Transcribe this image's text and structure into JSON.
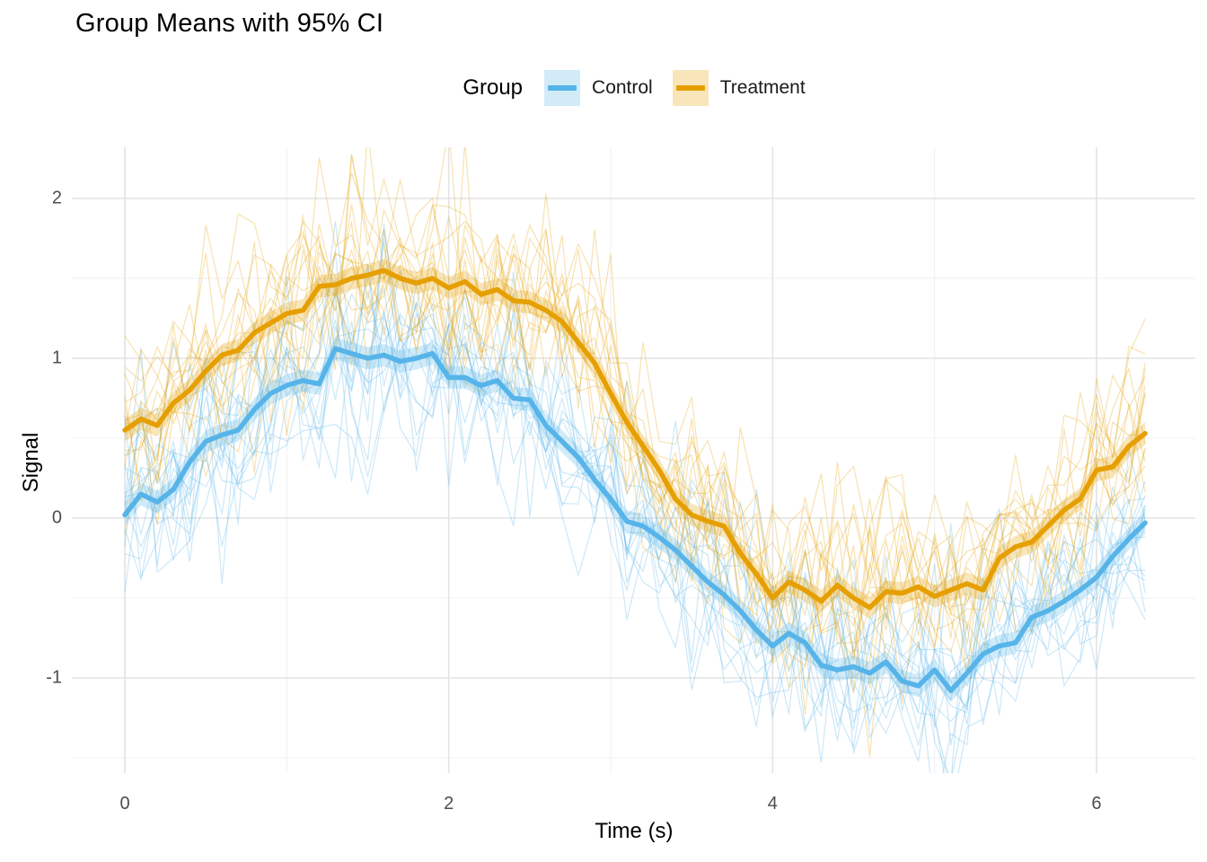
{
  "chart_data": {
    "type": "line",
    "title": "Group Means with 95% CI",
    "xlabel": "Time (s)",
    "ylabel": "Signal",
    "legend_title": "Group",
    "legend_position": "top-center",
    "grid": "on",
    "x_ticks": [
      0,
      2,
      4,
      6
    ],
    "y_ticks": [
      -1,
      0,
      1,
      2
    ],
    "x_minor_gridlines": [
      1,
      3,
      5
    ],
    "y_minor_gridlines": [
      -1.5,
      -0.5,
      0.5,
      1.5
    ],
    "xlim": [
      -0.31,
      6.6
    ],
    "ylim": [
      -1.59,
      2.32
    ],
    "x": [
      0,
      0.1,
      0.2,
      0.3,
      0.4,
      0.5,
      0.6,
      0.7,
      0.8,
      0.9,
      1,
      1.1,
      1.2,
      1.3,
      1.4,
      1.5,
      1.6,
      1.7,
      1.8,
      1.9,
      2,
      2.1,
      2.2,
      2.3,
      2.4,
      2.5,
      2.6,
      2.7,
      2.8,
      2.9,
      3,
      3.1,
      3.2,
      3.3,
      3.4,
      3.5,
      3.6,
      3.7,
      3.8,
      3.9,
      4,
      4.1,
      4.2,
      4.3,
      4.4,
      4.5,
      4.6,
      4.7,
      4.8,
      4.9,
      5,
      5.1,
      5.2,
      5.3,
      5.4,
      5.5,
      5.6,
      5.7,
      5.8,
      5.9,
      6,
      6.1,
      6.2,
      6.3
    ],
    "series": [
      {
        "name": "Control",
        "color": "#56B4E9",
        "ci_halfwidth": 0.07,
        "mean": [
          0.02,
          0.15,
          0.1,
          0.18,
          0.35,
          0.48,
          0.52,
          0.55,
          0.68,
          0.78,
          0.83,
          0.86,
          0.84,
          1.06,
          1.03,
          1.0,
          1.02,
          0.98,
          1.0,
          1.03,
          0.88,
          0.88,
          0.83,
          0.86,
          0.75,
          0.74,
          0.58,
          0.48,
          0.38,
          0.24,
          0.12,
          -0.02,
          -0.05,
          -0.12,
          -0.2,
          -0.3,
          -0.4,
          -0.48,
          -0.58,
          -0.7,
          -0.8,
          -0.72,
          -0.78,
          -0.92,
          -0.95,
          -0.93,
          -0.97,
          -0.9,
          -1.02,
          -1.05,
          -0.95,
          -1.08,
          -0.97,
          -0.85,
          -0.8,
          -0.78,
          -0.62,
          -0.58,
          -0.52,
          -0.45,
          -0.37,
          -0.24,
          -0.13,
          -0.03
        ]
      },
      {
        "name": "Treatment",
        "color": "#E69F00",
        "ci_halfwidth": 0.07,
        "mean": [
          0.55,
          0.62,
          0.58,
          0.72,
          0.8,
          0.92,
          1.02,
          1.05,
          1.16,
          1.22,
          1.28,
          1.3,
          1.45,
          1.46,
          1.5,
          1.52,
          1.55,
          1.5,
          1.47,
          1.5,
          1.44,
          1.48,
          1.4,
          1.43,
          1.36,
          1.35,
          1.3,
          1.23,
          1.1,
          0.97,
          0.78,
          0.6,
          0.45,
          0.3,
          0.12,
          0.02,
          -0.02,
          -0.05,
          -0.22,
          -0.35,
          -0.5,
          -0.4,
          -0.45,
          -0.52,
          -0.42,
          -0.5,
          -0.56,
          -0.46,
          -0.47,
          -0.43,
          -0.49,
          -0.45,
          -0.41,
          -0.45,
          -0.25,
          -0.18,
          -0.15,
          -0.05,
          0.05,
          0.12,
          0.3,
          0.32,
          0.45,
          0.53
        ]
      }
    ],
    "individual_traces": {
      "per_group": 15,
      "description": "thin translucent per-subject lines scattered around each group mean",
      "alpha": 0.3
    },
    "style_colors": {
      "control": "#56B4E9",
      "treatment": "#E69F00",
      "major_gridline": "#e3e3e3",
      "minor_gridline": "#f0f0f0",
      "tick_label": "#4d4d4d",
      "text": "#000000",
      "background": "#ffffff"
    }
  }
}
